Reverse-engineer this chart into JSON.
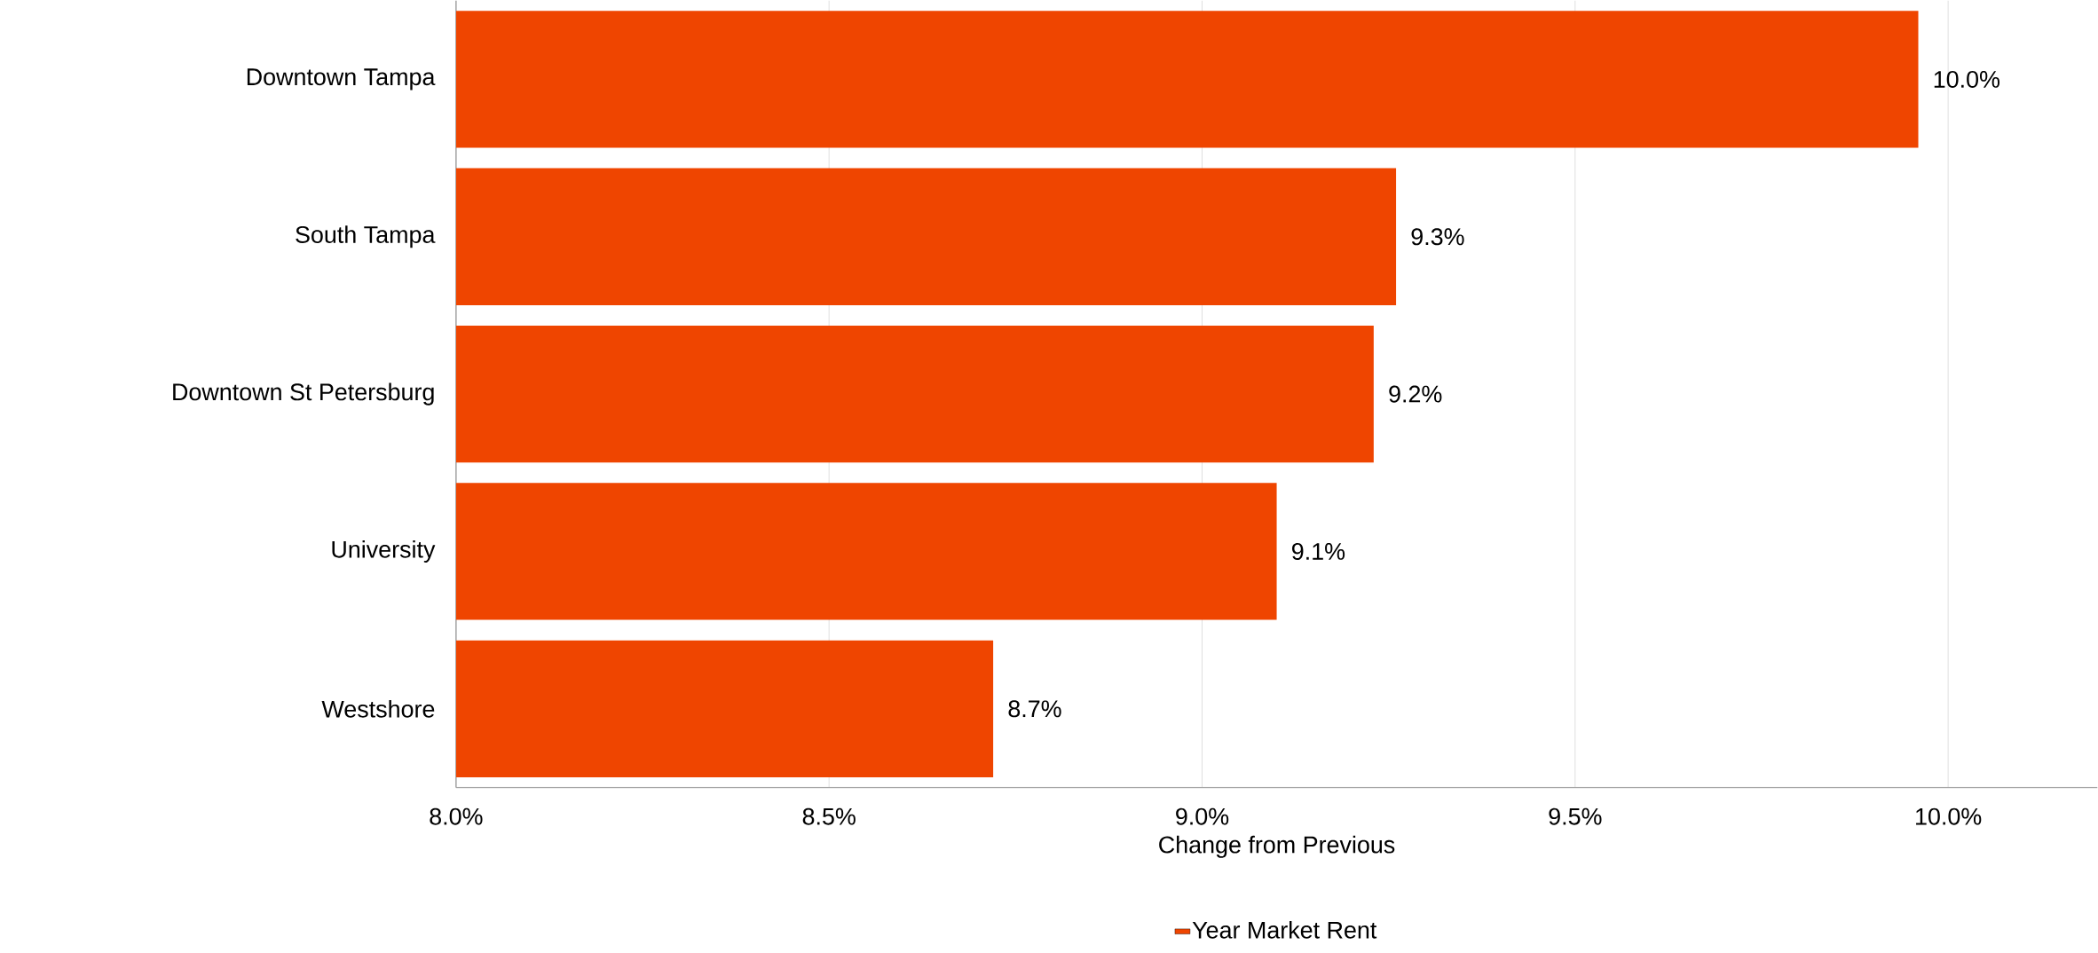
{
  "chart_data": {
    "type": "bar",
    "orientation": "horizontal",
    "xlabel": "Change from Previous",
    "categories": [
      "Downtown Tampa",
      "South Tampa",
      "Downtown St Petersburg",
      "University",
      "Westshore"
    ],
    "series": [
      {
        "name": "Year Market Rent",
        "color": "#ef4500",
        "values": [
          9.96,
          9.26,
          9.23,
          9.1,
          8.72
        ],
        "value_labels": [
          "10.0%",
          "9.3%",
          "9.2%",
          "9.1%",
          "8.7%"
        ]
      }
    ],
    "xlim": [
      8.0,
      10.2
    ],
    "xticks": [
      {
        "value": 8.0,
        "label": "8.0%"
      },
      {
        "value": 8.5,
        "label": "8.5%"
      },
      {
        "value": 9.0,
        "label": "9.0%"
      },
      {
        "value": 9.5,
        "label": "9.5%"
      },
      {
        "value": 10.0,
        "label": "10.0%"
      }
    ],
    "grid": "x",
    "legend": "bottom"
  }
}
